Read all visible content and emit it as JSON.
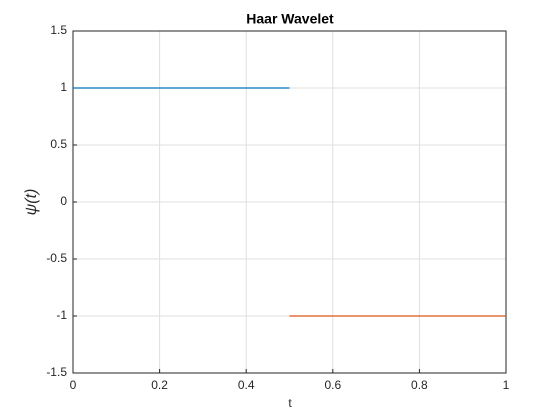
{
  "chart_data": {
    "type": "line",
    "title": "Haar Wavelet",
    "x_label": "t",
    "y_label": "ψ(t)",
    "series": [
      {
        "x": [
          0,
          0.5
        ],
        "values": [
          1,
          1
        ],
        "color": "#0072BD"
      },
      {
        "x": [
          0.5,
          1
        ],
        "values": [
          -1,
          -1
        ],
        "color": "#D95319"
      }
    ],
    "xlim": [
      0,
      1
    ],
    "xticks": [
      0,
      0.2,
      0.4,
      0.6,
      0.8,
      1
    ],
    "ylim": [
      -1.5,
      1.5
    ],
    "yticks": [
      -1.5,
      -1,
      -0.5,
      0,
      0.5,
      1,
      1.5
    ],
    "grid": true
  }
}
